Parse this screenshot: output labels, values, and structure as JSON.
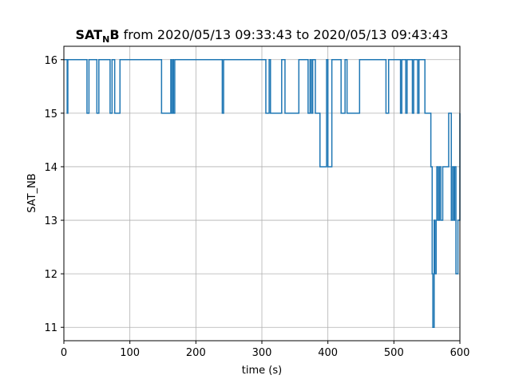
{
  "chart_data": {
    "type": "line",
    "title_main": "SAT",
    "title_sub": "N",
    "title_main2": "B",
    "title_rest": " from 2020/05/13 09:33:43 to 2020/05/13 09:43:43",
    "xlabel": "time (s)",
    "ylabel": "SAT_NB",
    "xlim": [
      0,
      600
    ],
    "ylim": [
      10.75,
      16.25
    ],
    "xticks": [
      0,
      100,
      200,
      300,
      400,
      500,
      600
    ],
    "xtick_labels": [
      "0",
      "100",
      "200",
      "300",
      "400",
      "500",
      "600"
    ],
    "yticks": [
      11,
      12,
      13,
      14,
      15,
      16
    ],
    "ytick_labels": [
      "11",
      "12",
      "13",
      "14",
      "15",
      "16"
    ],
    "grid": true,
    "line_color": "#1f77b4",
    "series": [
      {
        "x": [
          0,
          5,
          6,
          35,
          38,
          50,
          53,
          70,
          73,
          77,
          80,
          85,
          148,
          162,
          163,
          165,
          166,
          168,
          172,
          240,
          242,
          306,
          311,
          313,
          315,
          330,
          335,
          347,
          351,
          356,
          365,
          370,
          373,
          375,
          377,
          381,
          383,
          388,
          398,
          400,
          403,
          406,
          408,
          420,
          426,
          429,
          431,
          448,
          488,
          492,
          510,
          512,
          518,
          520,
          528,
          530,
          536,
          538,
          547,
          551,
          556,
          558,
          559,
          561,
          562,
          564,
          565,
          567,
          569,
          571,
          574,
          579,
          583,
          587,
          589,
          591,
          592,
          594,
          597,
          600
        ],
        "y": [
          16,
          15,
          16,
          15,
          16,
          15,
          16,
          15,
          16,
          15,
          15,
          16,
          15,
          16,
          15,
          16,
          15,
          16,
          16,
          15,
          16,
          15,
          16,
          15,
          15,
          16,
          15,
          15,
          15,
          16,
          16,
          15,
          16,
          15,
          16,
          15,
          15,
          14,
          16,
          14,
          14,
          16,
          16,
          15,
          16,
          15,
          15,
          16,
          15,
          16,
          15,
          16,
          15,
          16,
          15,
          16,
          15,
          16,
          15,
          15,
          14,
          12,
          11,
          13,
          12,
          13,
          14,
          13,
          14,
          13,
          14,
          14,
          15,
          13,
          14,
          13,
          14,
          12,
          13,
          15
        ]
      }
    ]
  }
}
